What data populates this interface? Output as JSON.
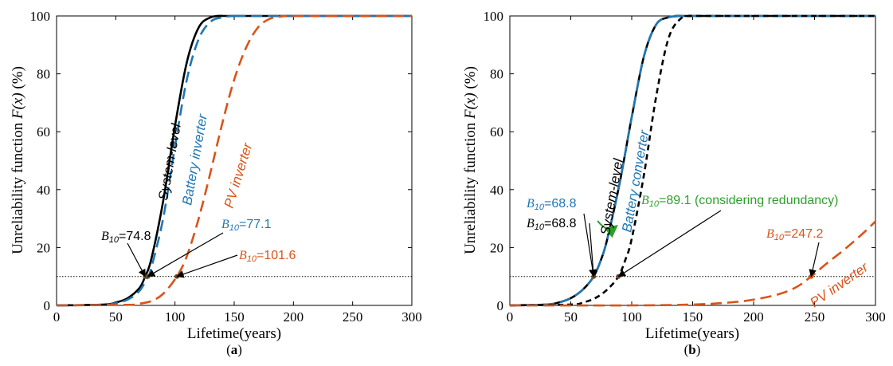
{
  "figure": {
    "panels": [
      {
        "id": "a",
        "sublabel_open": "(",
        "sublabel_letter": "a",
        "sublabel_close": ")",
        "xlabel": "Lifetime(years)",
        "ylabel_prefix": "Unreliability function ",
        "ylabel_fx": "F(x)",
        "ylabel_suffix": " (%)",
        "curve_labels": [
          {
            "key": "sys",
            "text": "System-level",
            "color": "#000000"
          },
          {
            "key": "bat",
            "text": "Battery inverter",
            "color": "#1f77b4"
          },
          {
            "key": "pv",
            "text": "PV inverter",
            "color": "#d95319"
          }
        ],
        "annotations": [
          {
            "key": "sys",
            "b": "B",
            "sub": "10",
            "rest": "=74.8",
            "b_color": "#000000",
            "rest_color": "#000000"
          },
          {
            "key": "bat",
            "b": "B",
            "sub": "10",
            "rest": "=77.1",
            "b_color": "#1f77b4",
            "rest_color": "#1f77b4"
          },
          {
            "key": "pv",
            "b": "B",
            "sub": "10",
            "rest": "=101.6",
            "b_color": "#d95319",
            "rest_color": "#d95319"
          }
        ]
      },
      {
        "id": "b",
        "sublabel_open": "(",
        "sublabel_letter": "b",
        "sublabel_close": ")",
        "xlabel": "Lifetime(years)",
        "ylabel_prefix": "Unreliability function ",
        "ylabel_fx": "F(x)",
        "ylabel_suffix": " (%)",
        "curve_labels": [
          {
            "key": "sys",
            "text": "System-level",
            "color": "#000000"
          },
          {
            "key": "bat",
            "text": "Battery converter",
            "color": "#1f77b4"
          },
          {
            "key": "pv",
            "text": "PV inverter",
            "color": "#d95319"
          }
        ],
        "annotations": [
          {
            "key": "bat",
            "b": "B",
            "sub": "10",
            "rest": "=68.8",
            "b_color": "#1f77b4",
            "rest_color": "#1f77b4"
          },
          {
            "key": "sys",
            "b": "B",
            "sub": "10",
            "rest": "=68.8",
            "b_color": "#000000",
            "rest_color": "#000000"
          },
          {
            "key": "red",
            "b": "B",
            "sub": "10",
            "rest": "=89.1 (considering redundancy)",
            "b_color": "#2ca02c",
            "rest_color": "#2ca02c"
          },
          {
            "key": "pv",
            "b": "B",
            "sub": "10",
            "rest": "=247.2",
            "b_color": "#d95319",
            "rest_color": "#d95319"
          }
        ]
      }
    ]
  },
  "chart_data": [
    {
      "type": "line",
      "panel": "a",
      "xlabel": "Lifetime(years)",
      "ylabel": "Unreliability function F(x) (%)",
      "xlim": [
        0,
        300
      ],
      "ylim": [
        0,
        100
      ],
      "xticks": [
        0,
        50,
        100,
        150,
        200,
        250,
        300
      ],
      "yticks": [
        0,
        20,
        40,
        60,
        80,
        100
      ],
      "reference_line_y": 10,
      "series": [
        {
          "name": "System-level",
          "key": "sys",
          "style": "solid",
          "color": "#000000",
          "x": [
            0,
            40,
            50,
            60,
            70,
            74.8,
            80,
            90,
            100,
            110,
            120,
            130,
            140,
            150,
            300
          ],
          "y": [
            0,
            0.3,
            1,
            2.5,
            6,
            10,
            16,
            36,
            62,
            84,
            96,
            99.5,
            100,
            100,
            100
          ]
        },
        {
          "name": "Battery inverter",
          "key": "bat",
          "style": "dashed",
          "color": "#1f77b4",
          "x": [
            0,
            40,
            50,
            60,
            70,
            77.1,
            80,
            90,
            100,
            110,
            120,
            130,
            140,
            150,
            160,
            300
          ],
          "y": [
            0,
            0.2,
            0.8,
            2,
            5,
            10,
            13,
            30,
            55,
            78,
            92,
            98,
            99.5,
            100,
            100,
            100
          ]
        },
        {
          "name": "PV inverter",
          "key": "pv",
          "style": "dashed",
          "color": "#d95319",
          "x": [
            0,
            60,
            70,
            80,
            90,
            101.6,
            110,
            120,
            130,
            140,
            150,
            160,
            170,
            180,
            190,
            200,
            300
          ],
          "y": [
            0,
            0.2,
            0.6,
            1.5,
            4,
            10,
            17,
            30,
            46,
            63,
            78,
            89,
            96,
            99,
            99.8,
            100,
            100
          ]
        }
      ],
      "markers": [
        {
          "x": 74.8,
          "y": 10,
          "label": "B10=74.8"
        },
        {
          "x": 77.1,
          "y": 10,
          "label": "B10=77.1"
        },
        {
          "x": 101.6,
          "y": 10,
          "label": "B10=101.6"
        }
      ]
    },
    {
      "type": "line",
      "panel": "b",
      "xlabel": "Lifetime(years)",
      "ylabel": "Unreliability function F(x) (%)",
      "xlim": [
        0,
        300
      ],
      "ylim": [
        0,
        100
      ],
      "xticks": [
        0,
        50,
        100,
        150,
        200,
        250,
        300
      ],
      "yticks": [
        0,
        20,
        40,
        60,
        80,
        100
      ],
      "reference_line_y": 10,
      "series": [
        {
          "name": "System-level",
          "key": "sys",
          "style": "solid",
          "color": "#000000",
          "x": [
            0,
            30,
            40,
            50,
            60,
            68.8,
            75,
            80,
            90,
            100,
            110,
            120,
            130,
            140,
            150,
            300
          ],
          "y": [
            0,
            0.3,
            1,
            2.5,
            5.5,
            10,
            16,
            23,
            42,
            65,
            86,
            97,
            99.5,
            100,
            100,
            100
          ]
        },
        {
          "name": "Battery converter",
          "key": "bat",
          "style": "dashed",
          "color": "#1f77b4",
          "x": [
            0,
            30,
            40,
            50,
            60,
            68.8,
            75,
            80,
            90,
            100,
            110,
            120,
            130,
            140,
            150,
            300
          ],
          "y": [
            0,
            0.3,
            1,
            2.5,
            5.5,
            10,
            16,
            23,
            42,
            65,
            86,
            97,
            99.5,
            100,
            100,
            100
          ]
        },
        {
          "name": "considering redundancy",
          "key": "red",
          "style": "dashed",
          "color": "#000000",
          "x": [
            0,
            50,
            60,
            70,
            80,
            89.1,
            95,
            100,
            110,
            120,
            130,
            140,
            150,
            160,
            300
          ],
          "y": [
            0,
            0.3,
            1,
            2.5,
            5.5,
            10,
            16,
            23,
            45,
            72,
            92,
            99,
            100,
            100,
            100
          ]
        },
        {
          "name": "PV inverter",
          "key": "pv",
          "style": "dashed",
          "color": "#d95319",
          "x": [
            0,
            100,
            150,
            180,
            200,
            220,
            235,
            247.2,
            260,
            275,
            290,
            300
          ],
          "y": [
            0,
            0,
            0.3,
            1,
            2,
            3.8,
            6.3,
            10,
            14.5,
            19.5,
            25,
            29
          ]
        }
      ],
      "markers": [
        {
          "x": 68.8,
          "y": 10,
          "label": "B10=68.8"
        },
        {
          "x": 89.1,
          "y": 10,
          "label": "B10=89.1 (considering redundancy)"
        },
        {
          "x": 247.2,
          "y": 10,
          "label": "B10=247.2"
        }
      ]
    }
  ]
}
